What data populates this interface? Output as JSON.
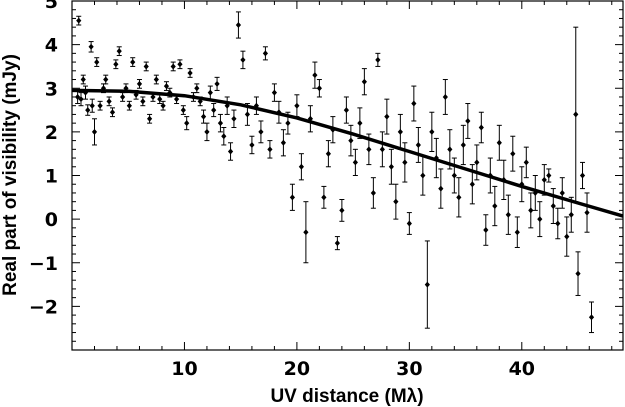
{
  "chart_data": {
    "type": "scatter",
    "title": "",
    "xlabel": "UV distance (Mλ)",
    "ylabel": "Real part of visibility (mJy)",
    "xlim": [
      0,
      49
    ],
    "ylim": [
      -3,
      5
    ],
    "xticks": [
      10,
      20,
      30,
      40
    ],
    "yticks": [
      -2,
      -1,
      0,
      1,
      2,
      3,
      4,
      5
    ],
    "xtick_labels": [
      "10",
      "20",
      "30",
      "40"
    ],
    "ytick_labels": [
      "−2",
      "−1",
      "0",
      "1",
      "2",
      "3",
      "4",
      "5"
    ],
    "grid": false,
    "marker_color": "#000000",
    "fit_line": {
      "x": [
        0,
        5,
        10,
        15,
        20,
        25,
        30,
        35,
        40,
        45,
        49
      ],
      "y": [
        2.95,
        2.93,
        2.83,
        2.62,
        2.32,
        1.95,
        1.55,
        1.15,
        0.75,
        0.37,
        0.07
      ]
    },
    "points": [
      {
        "x": 0.6,
        "y": 4.55,
        "err": 0.1
      },
      {
        "x": 0.5,
        "y": 2.8,
        "err": 0.15
      },
      {
        "x": 0.8,
        "y": 2.75,
        "err": 0.15
      },
      {
        "x": 1.0,
        "y": 3.2,
        "err": 0.1
      },
      {
        "x": 1.2,
        "y": 2.9,
        "err": 0.15
      },
      {
        "x": 1.4,
        "y": 2.5,
        "err": 0.12
      },
      {
        "x": 1.7,
        "y": 3.95,
        "err": 0.12
      },
      {
        "x": 2.0,
        "y": 2.0,
        "err": 0.3
      },
      {
        "x": 1.8,
        "y": 2.6,
        "err": 0.15
      },
      {
        "x": 2.2,
        "y": 3.6,
        "err": 0.1
      },
      {
        "x": 2.5,
        "y": 2.6,
        "err": 0.1
      },
      {
        "x": 2.8,
        "y": 3.0,
        "err": 0.1
      },
      {
        "x": 3.0,
        "y": 3.2,
        "err": 0.1
      },
      {
        "x": 3.3,
        "y": 2.7,
        "err": 0.1
      },
      {
        "x": 3.6,
        "y": 2.45,
        "err": 0.1
      },
      {
        "x": 3.9,
        "y": 3.55,
        "err": 0.1
      },
      {
        "x": 4.2,
        "y": 3.85,
        "err": 0.1
      },
      {
        "x": 4.5,
        "y": 2.8,
        "err": 0.1
      },
      {
        "x": 4.8,
        "y": 3.0,
        "err": 0.1
      },
      {
        "x": 5.1,
        "y": 2.6,
        "err": 0.1
      },
      {
        "x": 5.4,
        "y": 3.6,
        "err": 0.1
      },
      {
        "x": 5.7,
        "y": 2.85,
        "err": 0.1
      },
      {
        "x": 6.0,
        "y": 3.1,
        "err": 0.1
      },
      {
        "x": 6.3,
        "y": 2.7,
        "err": 0.1
      },
      {
        "x": 6.6,
        "y": 3.5,
        "err": 0.1
      },
      {
        "x": 6.9,
        "y": 2.3,
        "err": 0.1
      },
      {
        "x": 7.2,
        "y": 2.8,
        "err": 0.1
      },
      {
        "x": 7.5,
        "y": 3.2,
        "err": 0.1
      },
      {
        "x": 7.8,
        "y": 2.75,
        "err": 0.1
      },
      {
        "x": 8.1,
        "y": 2.6,
        "err": 0.1
      },
      {
        "x": 8.4,
        "y": 3.05,
        "err": 0.1
      },
      {
        "x": 8.7,
        "y": 2.9,
        "err": 0.1
      },
      {
        "x": 9.0,
        "y": 3.5,
        "err": 0.1
      },
      {
        "x": 9.3,
        "y": 2.75,
        "err": 0.1
      },
      {
        "x": 9.6,
        "y": 3.55,
        "err": 0.1
      },
      {
        "x": 9.9,
        "y": 2.5,
        "err": 0.1
      },
      {
        "x": 10.2,
        "y": 2.2,
        "err": 0.15
      },
      {
        "x": 10.5,
        "y": 3.35,
        "err": 0.1
      },
      {
        "x": 10.8,
        "y": 2.8,
        "err": 0.1
      },
      {
        "x": 11.1,
        "y": 3.0,
        "err": 0.1
      },
      {
        "x": 11.4,
        "y": 2.7,
        "err": 0.1
      },
      {
        "x": 11.7,
        "y": 2.35,
        "err": 0.15
      },
      {
        "x": 12.0,
        "y": 2.0,
        "err": 0.2
      },
      {
        "x": 12.3,
        "y": 2.9,
        "err": 0.15
      },
      {
        "x": 12.6,
        "y": 2.5,
        "err": 0.15
      },
      {
        "x": 12.9,
        "y": 3.1,
        "err": 0.15
      },
      {
        "x": 13.2,
        "y": 2.2,
        "err": 0.2
      },
      {
        "x": 13.5,
        "y": 1.9,
        "err": 0.2
      },
      {
        "x": 13.8,
        "y": 2.6,
        "err": 0.2
      },
      {
        "x": 14.1,
        "y": 1.55,
        "err": 0.2
      },
      {
        "x": 14.4,
        "y": 2.3,
        "err": 0.2
      },
      {
        "x": 14.8,
        "y": 4.45,
        "err": 0.3
      },
      {
        "x": 15.2,
        "y": 3.65,
        "err": 0.2
      },
      {
        "x": 15.6,
        "y": 2.4,
        "err": 0.25
      },
      {
        "x": 16.0,
        "y": 1.7,
        "err": 0.2
      },
      {
        "x": 16.4,
        "y": 2.6,
        "err": 0.2
      },
      {
        "x": 16.8,
        "y": 2.0,
        "err": 0.25
      },
      {
        "x": 17.2,
        "y": 3.8,
        "err": 0.15
      },
      {
        "x": 17.6,
        "y": 1.6,
        "err": 0.2
      },
      {
        "x": 18.0,
        "y": 2.9,
        "err": 0.2
      },
      {
        "x": 18.4,
        "y": 2.45,
        "err": 0.25
      },
      {
        "x": 18.8,
        "y": 1.75,
        "err": 0.3
      },
      {
        "x": 19.2,
        "y": 2.2,
        "err": 0.25
      },
      {
        "x": 19.6,
        "y": 0.5,
        "err": 0.3
      },
      {
        "x": 20.0,
        "y": 2.6,
        "err": 0.25
      },
      {
        "x": 20.4,
        "y": 1.2,
        "err": 0.3
      },
      {
        "x": 20.8,
        "y": -0.3,
        "err": 0.7
      },
      {
        "x": 21.2,
        "y": 2.3,
        "err": 0.3
      },
      {
        "x": 21.6,
        "y": 3.3,
        "err": 0.3
      },
      {
        "x": 22.0,
        "y": 3.0,
        "err": 0.2
      },
      {
        "x": 22.4,
        "y": 0.5,
        "err": 0.25
      },
      {
        "x": 22.8,
        "y": 1.5,
        "err": 0.3
      },
      {
        "x": 23.2,
        "y": 2.05,
        "err": 0.3
      },
      {
        "x": 23.6,
        "y": -0.55,
        "err": 0.15
      },
      {
        "x": 24.0,
        "y": 0.2,
        "err": 0.25
      },
      {
        "x": 24.4,
        "y": 2.5,
        "err": 0.3
      },
      {
        "x": 24.8,
        "y": 1.8,
        "err": 0.35
      },
      {
        "x": 25.2,
        "y": 1.3,
        "err": 0.3
      },
      {
        "x": 25.6,
        "y": 2.2,
        "err": 0.35
      },
      {
        "x": 26.0,
        "y": 3.15,
        "err": 0.3
      },
      {
        "x": 26.4,
        "y": 1.6,
        "err": 0.35
      },
      {
        "x": 26.8,
        "y": 0.6,
        "err": 0.35
      },
      {
        "x": 27.2,
        "y": 3.65,
        "err": 0.15
      },
      {
        "x": 27.6,
        "y": 1.6,
        "err": 0.4
      },
      {
        "x": 28.0,
        "y": 2.35,
        "err": 0.4
      },
      {
        "x": 28.4,
        "y": 1.2,
        "err": 0.4
      },
      {
        "x": 28.8,
        "y": 0.4,
        "err": 0.4
      },
      {
        "x": 29.2,
        "y": 2.0,
        "err": 0.4
      },
      {
        "x": 29.6,
        "y": 1.3,
        "err": 0.45
      },
      {
        "x": 30.0,
        "y": -0.1,
        "err": 0.25
      },
      {
        "x": 30.4,
        "y": 2.65,
        "err": 0.4
      },
      {
        "x": 30.8,
        "y": 1.7,
        "err": 0.4
      },
      {
        "x": 31.2,
        "y": 1.0,
        "err": 0.45
      },
      {
        "x": 31.6,
        "y": -1.5,
        "err": 1.0
      },
      {
        "x": 32.0,
        "y": 2.0,
        "err": 0.45
      },
      {
        "x": 32.4,
        "y": 1.4,
        "err": 0.45
      },
      {
        "x": 32.8,
        "y": 0.7,
        "err": 0.45
      },
      {
        "x": 33.2,
        "y": 2.8,
        "err": 0.4
      },
      {
        "x": 33.6,
        "y": 1.6,
        "err": 0.45
      },
      {
        "x": 34.0,
        "y": 1.0,
        "err": 0.4
      },
      {
        "x": 34.4,
        "y": 0.5,
        "err": 0.45
      },
      {
        "x": 34.8,
        "y": 1.7,
        "err": 0.45
      },
      {
        "x": 35.2,
        "y": 2.25,
        "err": 0.4
      },
      {
        "x": 35.6,
        "y": 0.8,
        "err": 0.45
      },
      {
        "x": 36.0,
        "y": 1.3,
        "err": 0.4
      },
      {
        "x": 36.4,
        "y": 2.1,
        "err": 0.35
      },
      {
        "x": 36.8,
        "y": -0.25,
        "err": 0.35
      },
      {
        "x": 37.2,
        "y": 1.0,
        "err": 0.4
      },
      {
        "x": 37.6,
        "y": 0.3,
        "err": 0.45
      },
      {
        "x": 38.0,
        "y": 1.75,
        "err": 0.4
      },
      {
        "x": 38.4,
        "y": 0.9,
        "err": 0.45
      },
      {
        "x": 38.8,
        "y": 0.1,
        "err": 0.45
      },
      {
        "x": 39.2,
        "y": 1.5,
        "err": 0.4
      },
      {
        "x": 39.6,
        "y": -0.3,
        "err": 0.35
      },
      {
        "x": 40.0,
        "y": 0.8,
        "err": 0.4
      },
      {
        "x": 40.4,
        "y": 1.3,
        "err": 0.35
      },
      {
        "x": 40.8,
        "y": 0.2,
        "err": 0.4
      },
      {
        "x": 41.2,
        "y": 0.6,
        "err": 0.4
      },
      {
        "x": 41.6,
        "y": 0.0,
        "err": 0.4
      },
      {
        "x": 42.0,
        "y": 0.9,
        "err": 0.35
      },
      {
        "x": 42.4,
        "y": 1.0,
        "err": 0.15
      },
      {
        "x": 42.8,
        "y": 0.3,
        "err": 0.4
      },
      {
        "x": 43.2,
        "y": -0.1,
        "err": 0.35
      },
      {
        "x": 43.6,
        "y": 0.6,
        "err": 0.35
      },
      {
        "x": 44.0,
        "y": -0.4,
        "err": 0.45
      },
      {
        "x": 44.4,
        "y": 0.1,
        "err": 0.4
      },
      {
        "x": 44.8,
        "y": 2.4,
        "err": 2.0
      },
      {
        "x": 45.0,
        "y": -1.25,
        "err": 0.5
      },
      {
        "x": 45.4,
        "y": 1.0,
        "err": 0.3
      },
      {
        "x": 45.8,
        "y": 0.15,
        "err": 0.45
      },
      {
        "x": 46.2,
        "y": -2.25,
        "err": 0.35
      }
    ]
  }
}
